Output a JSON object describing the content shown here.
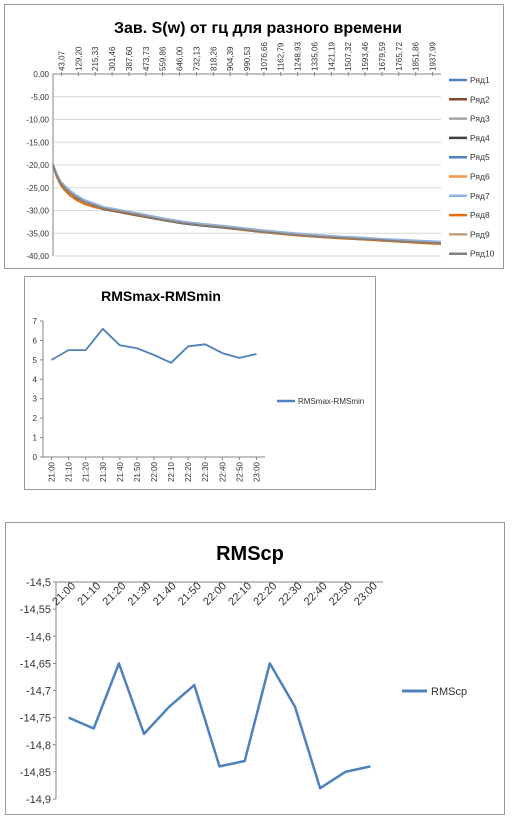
{
  "chart_data": [
    {
      "type": "line",
      "title": "Зав. S(w) от гц для разного времени",
      "x_tick_labels": [
        "43,07",
        "129,20",
        "215,33",
        "301,46",
        "387,60",
        "473,73",
        "559,86",
        "646,00",
        "732,13",
        "818,26",
        "904,39",
        "990,53",
        "1076,66",
        "1162,79",
        "1248,93",
        "1335,06",
        "1421,19",
        "1507,32",
        "1593,46",
        "1679,59",
        "1765,72",
        "1851,86",
        "1937,99"
      ],
      "y_tick_labels": [
        "0,00",
        "-5,00",
        "-10,00",
        "-15,00",
        "-20,00",
        "-25,00",
        "-30,00",
        "-35,00",
        "-40,00"
      ],
      "xlim": [
        43.07,
        2000
      ],
      "ylim": [
        -40,
        0
      ],
      "legend_position": "right",
      "series": [
        {
          "name": "Ряд1",
          "color": "#4f81bd",
          "x": [
            43,
            60,
            80,
            100,
            130,
            160,
            200,
            250,
            300,
            350,
            400,
            450,
            500,
            600,
            700,
            800,
            900,
            1000,
            1100,
            1200,
            1300,
            1400,
            1500,
            1600,
            1700,
            1800,
            1900,
            2000
          ],
          "y": [
            -19.8,
            -21.8,
            -23.6,
            -24.6,
            -25.8,
            -26.8,
            -27.8,
            -28.6,
            -29.4,
            -29.8,
            -30.2,
            -30.6,
            -31.0,
            -31.9,
            -32.6,
            -33.1,
            -33.5,
            -34.0,
            -34.5,
            -34.9,
            -35.3,
            -35.6,
            -35.9,
            -36.1,
            -36.4,
            -36.6,
            -36.8,
            -37.0
          ]
        },
        {
          "name": "Ряд2",
          "color": "#7f4a2b",
          "x": [
            43,
            60,
            80,
            100,
            130,
            160,
            200,
            250,
            300,
            350,
            400,
            450,
            500,
            600,
            700,
            800,
            900,
            1000,
            1100,
            1200,
            1300,
            1400,
            1500,
            1600,
            1700,
            1800,
            1900,
            2000
          ],
          "y": [
            -20.0,
            -22.2,
            -23.8,
            -24.9,
            -26.1,
            -27.2,
            -28.1,
            -28.9,
            -29.6,
            -30.0,
            -30.5,
            -30.9,
            -31.3,
            -32.1,
            -32.8,
            -33.3,
            -33.7,
            -34.2,
            -34.7,
            -35.1,
            -35.5,
            -35.8,
            -36.0,
            -36.3,
            -36.5,
            -36.8,
            -37.0,
            -37.2
          ]
        },
        {
          "name": "Ряд3",
          "color": "#a5a5a5",
          "x": [
            43,
            60,
            80,
            100,
            130,
            160,
            200,
            250,
            300,
            350,
            400,
            450,
            500,
            600,
            700,
            800,
            900,
            1000,
            1100,
            1200,
            1300,
            1400,
            1500,
            1600,
            1700,
            1800,
            1900,
            2000
          ],
          "y": [
            -19.9,
            -22.0,
            -23.7,
            -24.7,
            -25.9,
            -26.9,
            -27.9,
            -28.7,
            -29.5,
            -29.9,
            -30.3,
            -30.7,
            -31.1,
            -32.0,
            -32.7,
            -33.2,
            -33.6,
            -34.1,
            -34.6,
            -35.0,
            -35.4,
            -35.7,
            -35.9,
            -36.2,
            -36.4,
            -36.7,
            -36.9,
            -37.1
          ]
        },
        {
          "name": "Ряд4",
          "color": "#404040",
          "x": [
            43,
            60,
            80,
            100,
            130,
            160,
            200,
            250,
            300,
            350,
            400,
            450,
            500,
            600,
            700,
            800,
            900,
            1000,
            1100,
            1200,
            1300,
            1400,
            1500,
            1600,
            1700,
            1800,
            1900,
            2000
          ],
          "y": [
            -20.1,
            -22.3,
            -24.0,
            -25.1,
            -26.3,
            -27.3,
            -28.3,
            -29.1,
            -29.8,
            -30.2,
            -30.6,
            -31.0,
            -31.4,
            -32.2,
            -32.9,
            -33.4,
            -33.8,
            -34.3,
            -34.8,
            -35.2,
            -35.6,
            -35.9,
            -36.1,
            -36.4,
            -36.6,
            -36.9,
            -37.1,
            -37.3
          ]
        },
        {
          "name": "Ряд5",
          "color": "#4f81bd",
          "x": [
            43,
            60,
            80,
            100,
            130,
            160,
            200,
            250,
            300,
            350,
            400,
            450,
            500,
            600,
            700,
            800,
            900,
            1000,
            1100,
            1200,
            1300,
            1400,
            1500,
            1600,
            1700,
            1800,
            1900,
            2000
          ],
          "y": [
            -19.7,
            -21.9,
            -23.5,
            -24.5,
            -25.7,
            -26.7,
            -27.7,
            -28.5,
            -29.3,
            -29.7,
            -30.1,
            -30.5,
            -30.9,
            -31.8,
            -32.5,
            -33.0,
            -33.4,
            -33.9,
            -34.4,
            -34.8,
            -35.2,
            -35.5,
            -35.8,
            -36.0,
            -36.3,
            -36.5,
            -36.7,
            -36.9
          ]
        },
        {
          "name": "Ряд6",
          "color": "#f79646",
          "x": [
            43,
            60,
            80,
            100,
            130,
            160,
            200,
            250,
            300,
            350,
            400,
            450,
            500,
            600,
            700,
            800,
            900,
            1000,
            1100,
            1200,
            1300,
            1400,
            1500,
            1600,
            1700,
            1800,
            1900,
            2000
          ],
          "y": [
            -20.0,
            -22.4,
            -24.2,
            -25.4,
            -26.6,
            -27.6,
            -28.4,
            -29.2,
            -29.6,
            -30.0,
            -30.4,
            -30.8,
            -31.2,
            -32.0,
            -32.7,
            -33.2,
            -33.6,
            -34.2,
            -34.7,
            -35.1,
            -35.5,
            -35.8,
            -36.1,
            -36.3,
            -36.6,
            -36.8,
            -37.1,
            -37.3
          ]
        },
        {
          "name": "Ряд7",
          "color": "#8db3e2",
          "x": [
            43,
            60,
            80,
            100,
            130,
            160,
            200,
            250,
            300,
            350,
            400,
            450,
            500,
            600,
            700,
            800,
            900,
            1000,
            1100,
            1200,
            1300,
            1400,
            1500,
            1600,
            1700,
            1800,
            1900,
            2000
          ],
          "y": [
            -19.8,
            -21.7,
            -23.4,
            -24.4,
            -25.6,
            -26.6,
            -27.6,
            -28.4,
            -29.2,
            -29.6,
            -30.0,
            -30.4,
            -30.8,
            -31.7,
            -32.4,
            -32.9,
            -33.3,
            -33.8,
            -34.3,
            -34.7,
            -35.1,
            -35.4,
            -35.7,
            -35.9,
            -36.2,
            -36.4,
            -36.6,
            -36.8
          ]
        },
        {
          "name": "Ряд8",
          "color": "#e46c0a",
          "x": [
            43,
            60,
            80,
            100,
            130,
            160,
            200,
            250,
            300,
            350,
            400,
            450,
            500,
            600,
            700,
            800,
            900,
            1000,
            1100,
            1200,
            1300,
            1400,
            1500,
            1600,
            1700,
            1800,
            1900,
            2000
          ],
          "y": [
            -20.2,
            -22.5,
            -24.3,
            -25.5,
            -26.8,
            -27.7,
            -28.6,
            -29.3,
            -29.7,
            -30.1,
            -30.5,
            -30.9,
            -31.3,
            -32.1,
            -32.8,
            -33.3,
            -33.7,
            -34.3,
            -34.8,
            -35.2,
            -35.6,
            -35.9,
            -36.2,
            -36.4,
            -36.7,
            -36.9,
            -37.2,
            -37.4
          ]
        },
        {
          "name": "Ряд9",
          "color": "#c0a080",
          "x": [
            43,
            60,
            80,
            100,
            130,
            160,
            200,
            250,
            300,
            350,
            400,
            450,
            500,
            600,
            700,
            800,
            900,
            1000,
            1100,
            1200,
            1300,
            1400,
            1500,
            1600,
            1700,
            1800,
            1900,
            2000
          ],
          "y": [
            -19.9,
            -22.1,
            -23.8,
            -24.8,
            -26.0,
            -27.0,
            -28.0,
            -28.8,
            -29.5,
            -29.9,
            -30.3,
            -30.7,
            -31.1,
            -32.0,
            -32.7,
            -33.2,
            -33.6,
            -34.1,
            -34.6,
            -35.0,
            -35.4,
            -35.7,
            -36.0,
            -36.2,
            -36.5,
            -36.7,
            -36.9,
            -37.1
          ]
        },
        {
          "name": "Ряд10",
          "color": "#7f7f7f",
          "x": [
            43,
            60,
            80,
            100,
            130,
            160,
            200,
            250,
            300,
            350,
            400,
            450,
            500,
            600,
            700,
            800,
            900,
            1000,
            1100,
            1200,
            1300,
            1400,
            1500,
            1600,
            1700,
            1800,
            1900,
            2000
          ],
          "y": [
            -20.0,
            -22.2,
            -23.9,
            -25.0,
            -26.2,
            -27.1,
            -28.1,
            -28.9,
            -29.6,
            -30.0,
            -30.4,
            -30.8,
            -31.2,
            -32.1,
            -32.8,
            -33.3,
            -33.7,
            -34.2,
            -34.7,
            -35.1,
            -35.5,
            -35.8,
            -36.0,
            -36.3,
            -36.5,
            -36.8,
            -37.0,
            -37.2
          ]
        }
      ]
    },
    {
      "type": "line",
      "title": "RMSmax-RMSmin",
      "categories": [
        "21:00",
        "21:10",
        "21:20",
        "21:30",
        "21:40",
        "21:50",
        "22:00",
        "22:10",
        "22:20",
        "22:30",
        "22:40",
        "22:50",
        "23:00"
      ],
      "y_tick_labels": [
        "7",
        "6",
        "5",
        "4",
        "3",
        "2",
        "1",
        "0"
      ],
      "ylim": [
        0,
        7
      ],
      "legend_position": "right",
      "series": [
        {
          "name": "RMSmax-RMSmin",
          "color": "#4f81bd",
          "values": [
            5.0,
            5.5,
            5.5,
            6.6,
            5.75,
            5.6,
            5.25,
            4.85,
            5.7,
            5.8,
            5.35,
            5.1,
            5.3
          ]
        }
      ]
    },
    {
      "type": "line",
      "title": "RMScp",
      "categories": [
        "21:00",
        "21:10",
        "21:20",
        "21:30",
        "21:40",
        "21:50",
        "22:00",
        "22:10",
        "22:20",
        "22:30",
        "22:40",
        "22:50",
        "23:00"
      ],
      "y_tick_labels": [
        "-14,5",
        "-14,55",
        "-14,6",
        "-14,65",
        "-14,7",
        "-14,75",
        "-14,8",
        "-14,85",
        "-14,9"
      ],
      "ylim": [
        -14.9,
        -14.5
      ],
      "legend_position": "right",
      "series": [
        {
          "name": "RMScp",
          "color": "#4f81bd",
          "values": [
            -14.75,
            -14.77,
            -14.65,
            -14.78,
            -14.73,
            -14.69,
            -14.84,
            -14.83,
            -14.65,
            -14.73,
            -14.88,
            -14.85,
            -14.84
          ]
        }
      ]
    }
  ]
}
